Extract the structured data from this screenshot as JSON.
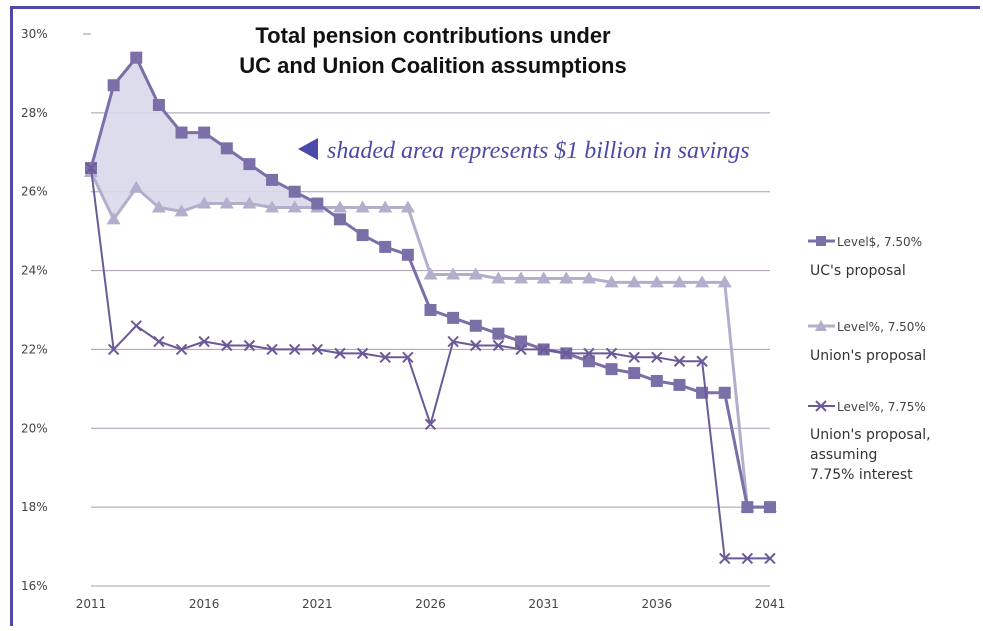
{
  "chart_data": {
    "type": "line",
    "title_lines": [
      "Total pension contributions under",
      "UC and Union Coalition assumptions"
    ],
    "annotation": "shaded area represents $1 billion in savings",
    "xlabel": "",
    "ylabel": "",
    "x": [
      2011,
      2012,
      2013,
      2014,
      2015,
      2016,
      2017,
      2018,
      2019,
      2020,
      2021,
      2022,
      2023,
      2024,
      2025,
      2026,
      2027,
      2028,
      2029,
      2030,
      2031,
      2032,
      2033,
      2034,
      2035,
      2036,
      2037,
      2038,
      2039,
      2040,
      2041
    ],
    "xlim": [
      2011,
      2041
    ],
    "ylim": [
      16,
      30
    ],
    "y_ticks": [
      16,
      18,
      20,
      22,
      24,
      26,
      28,
      30
    ],
    "y_tick_labels": [
      "16%",
      "18%",
      "20%",
      "22%",
      "24%",
      "26%",
      "28%",
      "30%"
    ],
    "x_ticks": [
      2011,
      2016,
      2021,
      2026,
      2031,
      2036,
      2041
    ],
    "x_tick_labels": [
      "2011",
      "2016",
      "2021",
      "2026",
      "2031",
      "2036",
      "2041"
    ],
    "grid": "horizontal",
    "legend_position": "right",
    "series": [
      {
        "name": "Level$, 7.50%",
        "caption": "UC's proposal",
        "marker": "square",
        "color": "#7b6fa8",
        "values": [
          26.6,
          28.7,
          29.4,
          28.2,
          27.5,
          27.5,
          27.1,
          26.7,
          26.3,
          26.0,
          25.7,
          25.3,
          24.9,
          24.6,
          24.4,
          23.0,
          22.8,
          22.6,
          22.4,
          22.2,
          22.0,
          21.9,
          21.7,
          21.5,
          21.4,
          21.2,
          21.1,
          20.9,
          20.9,
          18.0,
          18.0
        ]
      },
      {
        "name": "Level%, 7.50%",
        "caption": "Union's proposal",
        "marker": "triangle",
        "color": "#b4aecd",
        "values": [
          26.5,
          25.3,
          26.1,
          25.6,
          25.5,
          25.7,
          25.7,
          25.7,
          25.6,
          25.6,
          25.6,
          25.6,
          25.6,
          25.6,
          25.6,
          23.9,
          23.9,
          23.9,
          23.8,
          23.8,
          23.8,
          23.8,
          23.8,
          23.7,
          23.7,
          23.7,
          23.7,
          23.7,
          23.7,
          18.0,
          18.0
        ]
      },
      {
        "name": "Level%, 7.75%",
        "caption_lines": [
          "Union's proposal,",
          "assuming",
          "7.75% interest"
        ],
        "marker": "x",
        "color": "#6b5a98",
        "values": [
          26.6,
          22.0,
          22.6,
          22.2,
          22.0,
          22.2,
          22.1,
          22.1,
          22.0,
          22.0,
          22.0,
          21.9,
          21.9,
          21.8,
          21.8,
          20.1,
          22.2,
          22.1,
          22.1,
          22.0,
          22.0,
          21.9,
          21.9,
          21.9,
          21.8,
          21.8,
          21.7,
          21.7,
          16.7,
          16.7,
          16.7
        ]
      }
    ],
    "shaded_fill": "#d9d8ea"
  }
}
